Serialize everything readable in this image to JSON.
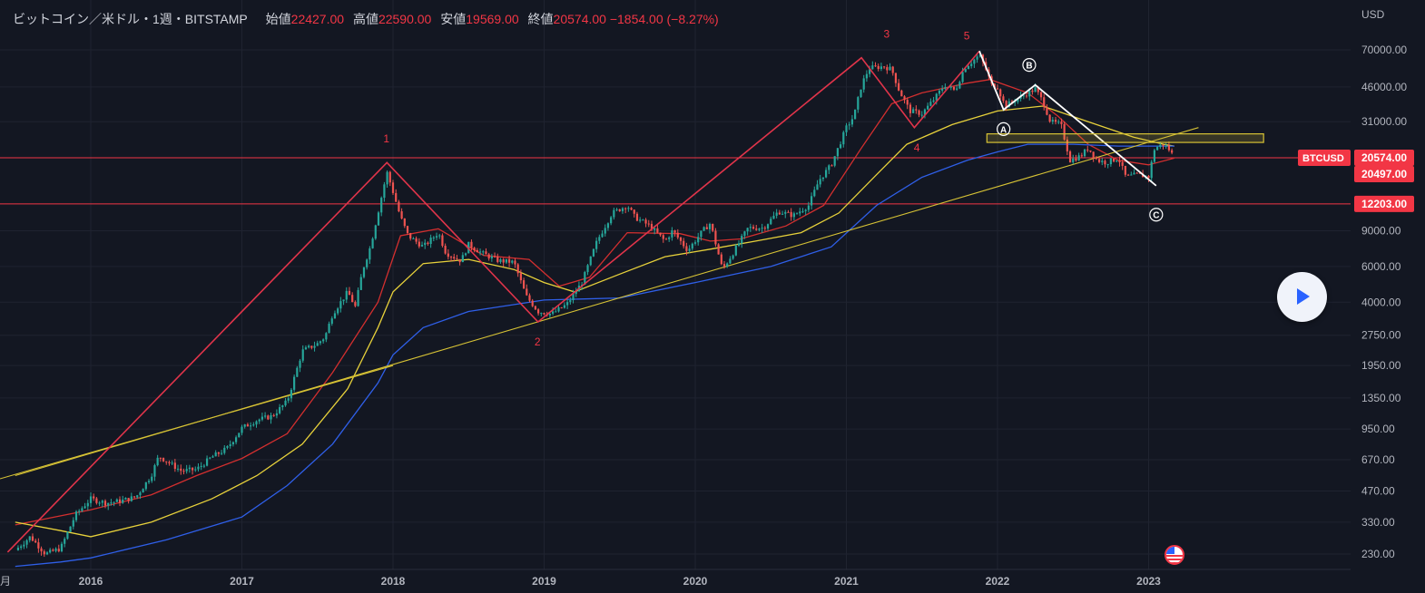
{
  "header": {
    "symbol": "ビットコイン／米ドル・1週・BITSTAMP",
    "open_label": "始値",
    "open": "22427.00",
    "high_label": "高値",
    "high": "22590.00",
    "low_label": "安値",
    "low": "19569.00",
    "close_label": "終値",
    "close": "20574.00",
    "change": "−1854.00 (−8.27%)"
  },
  "chart_data": {
    "type": "line",
    "yaxis": {
      "unit": "USD",
      "scale": "log",
      "ticks": [
        "70000.00",
        "46000.00",
        "31000.00",
        "9000.00",
        "6000.00",
        "4000.00",
        "2750.00",
        "1950.00",
        "1350.00",
        "950.00",
        "670.00",
        "470.00",
        "330.00",
        "230.00"
      ]
    },
    "xaxis": {
      "partial_label": "月",
      "ticks": [
        "2016",
        "2017",
        "2018",
        "2019",
        "2020",
        "2021",
        "2022",
        "2023"
      ]
    },
    "price_labels": [
      {
        "text": "BTCUSD",
        "kind": "symbol"
      },
      {
        "text": "20574.00",
        "kind": "last"
      },
      {
        "text": "20497.00",
        "kind": "ma"
      },
      {
        "text": "12203.00",
        "kind": "line"
      }
    ],
    "horizontal_lines": [
      20574,
      12200
    ],
    "wave_labels": [
      "1",
      "2",
      "3",
      "4",
      "5"
    ],
    "abc_labels": [
      "A",
      "B",
      "C"
    ],
    "series": [
      {
        "values": [
          [
            2015.5,
            240
          ],
          [
            2015.6,
            280
          ],
          [
            2015.7,
            230
          ],
          [
            2015.8,
            245
          ],
          [
            2015.9,
            360
          ],
          [
            2016.0,
            430
          ],
          [
            2016.1,
            410
          ],
          [
            2016.2,
            420
          ],
          [
            2016.3,
            440
          ],
          [
            2016.4,
            560
          ],
          [
            2016.45,
            700
          ],
          [
            2016.5,
            660
          ],
          [
            2016.6,
            590
          ],
          [
            2016.7,
            600
          ],
          [
            2016.8,
            690
          ],
          [
            2016.9,
            760
          ],
          [
            2017.0,
            960
          ],
          [
            2017.1,
            1050
          ],
          [
            2017.2,
            1100
          ],
          [
            2017.3,
            1300
          ],
          [
            2017.4,
            2300
          ],
          [
            2017.5,
            2500
          ],
          [
            2017.55,
            2700
          ],
          [
            2017.6,
            3500
          ],
          [
            2017.7,
            4500
          ],
          [
            2017.75,
            3800
          ],
          [
            2017.8,
            5800
          ],
          [
            2017.85,
            7500
          ],
          [
            2017.9,
            11000
          ],
          [
            2017.96,
            17500
          ],
          [
            2018.0,
            14000
          ],
          [
            2018.05,
            10500
          ],
          [
            2018.1,
            8500
          ],
          [
            2018.2,
            7500
          ],
          [
            2018.3,
            8800
          ],
          [
            2018.35,
            7000
          ],
          [
            2018.45,
            6400
          ],
          [
            2018.5,
            7700
          ],
          [
            2018.6,
            6900
          ],
          [
            2018.7,
            6400
          ],
          [
            2018.8,
            6300
          ],
          [
            2018.88,
            4300
          ],
          [
            2018.96,
            3600
          ],
          [
            2019.05,
            3500
          ],
          [
            2019.15,
            3900
          ],
          [
            2019.25,
            5000
          ],
          [
            2019.35,
            8000
          ],
          [
            2019.45,
            11000
          ],
          [
            2019.55,
            12000
          ],
          [
            2019.6,
            10500
          ],
          [
            2019.7,
            9500
          ],
          [
            2019.8,
            8000
          ],
          [
            2019.85,
            9000
          ],
          [
            2019.95,
            7200
          ],
          [
            2020.05,
            9000
          ],
          [
            2020.1,
            9800
          ],
          [
            2020.18,
            5800
          ],
          [
            2020.25,
            7000
          ],
          [
            2020.35,
            9300
          ],
          [
            2020.45,
            9300
          ],
          [
            2020.55,
            11200
          ],
          [
            2020.65,
            10700
          ],
          [
            2020.75,
            12000
          ],
          [
            2020.82,
            16000
          ],
          [
            2020.9,
            19000
          ],
          [
            2021.0,
            29000
          ],
          [
            2021.05,
            33000
          ],
          [
            2021.1,
            47000
          ],
          [
            2021.15,
            57000
          ],
          [
            2021.25,
            58000
          ],
          [
            2021.3,
            56000
          ],
          [
            2021.35,
            44000
          ],
          [
            2021.42,
            35000
          ],
          [
            2021.5,
            34000
          ],
          [
            2021.58,
            40000
          ],
          [
            2021.65,
            47000
          ],
          [
            2021.72,
            44000
          ],
          [
            2021.78,
            57000
          ],
          [
            2021.85,
            63000
          ],
          [
            2021.88,
            66000
          ],
          [
            2021.92,
            57000
          ],
          [
            2021.96,
            47000
          ],
          [
            2022.0,
            46000
          ],
          [
            2022.05,
            37000
          ],
          [
            2022.1,
            39000
          ],
          [
            2022.18,
            42000
          ],
          [
            2022.25,
            45000
          ],
          [
            2022.3,
            39000
          ],
          [
            2022.35,
            31000
          ],
          [
            2022.42,
            30000
          ],
          [
            2022.48,
            20000
          ],
          [
            2022.55,
            21000
          ],
          [
            2022.6,
            23000
          ],
          [
            2022.66,
            20000
          ],
          [
            2022.72,
            19500
          ],
          [
            2022.8,
            20500
          ],
          [
            2022.85,
            16500
          ],
          [
            2022.92,
            17000
          ],
          [
            2023.0,
            16600
          ],
          [
            2023.04,
            23000
          ],
          [
            2023.1,
            24000
          ],
          [
            2023.14,
            22400
          ],
          [
            2023.17,
            20574
          ]
        ]
      },
      {
        "values": [
          [
            2015.5,
            320
          ],
          [
            2016.0,
            380
          ],
          [
            2016.4,
            450
          ],
          [
            2016.7,
            560
          ],
          [
            2017.0,
            680
          ],
          [
            2017.3,
            900
          ],
          [
            2017.6,
            1800
          ],
          [
            2017.9,
            4000
          ],
          [
            2018.05,
            8500
          ],
          [
            2018.3,
            9200
          ],
          [
            2018.6,
            6800
          ],
          [
            2018.9,
            6500
          ],
          [
            2019.1,
            4800
          ],
          [
            2019.3,
            5300
          ],
          [
            2019.55,
            8800
          ],
          [
            2019.9,
            8700
          ],
          [
            2020.1,
            8000
          ],
          [
            2020.3,
            8200
          ],
          [
            2020.6,
            9500
          ],
          [
            2020.85,
            12000
          ],
          [
            2021.1,
            23000
          ],
          [
            2021.3,
            38000
          ],
          [
            2021.5,
            43000
          ],
          [
            2021.8,
            48000
          ],
          [
            2021.95,
            50000
          ],
          [
            2022.2,
            43000
          ],
          [
            2022.4,
            33000
          ],
          [
            2022.6,
            24000
          ],
          [
            2022.8,
            20000
          ],
          [
            2023.0,
            19000
          ],
          [
            2023.17,
            20500
          ]
        ]
      },
      {
        "values": [
          [
            2015.5,
            330
          ],
          [
            2015.8,
            300
          ],
          [
            2016.0,
            280
          ],
          [
            2016.4,
            330
          ],
          [
            2016.8,
            430
          ],
          [
            2017.1,
            560
          ],
          [
            2017.4,
            800
          ],
          [
            2017.7,
            1500
          ],
          [
            2017.9,
            3000
          ],
          [
            2018.0,
            4500
          ],
          [
            2018.2,
            6200
          ],
          [
            2018.5,
            6500
          ],
          [
            2018.8,
            5800
          ],
          [
            2019.0,
            5000
          ],
          [
            2019.2,
            4500
          ],
          [
            2019.5,
            5500
          ],
          [
            2019.8,
            6700
          ],
          [
            2020.1,
            7300
          ],
          [
            2020.4,
            8000
          ],
          [
            2020.7,
            8800
          ],
          [
            2020.95,
            11000
          ],
          [
            2021.2,
            17000
          ],
          [
            2021.4,
            24000
          ],
          [
            2021.7,
            30000
          ],
          [
            2022.0,
            35000
          ],
          [
            2022.3,
            37000
          ],
          [
            2022.6,
            31000
          ],
          [
            2022.9,
            26000
          ],
          [
            2023.1,
            24000
          ],
          [
            2023.17,
            23500
          ]
        ]
      },
      {
        "values": [
          [
            2015.5,
            200
          ],
          [
            2015.8,
            210
          ],
          [
            2016.0,
            220
          ],
          [
            2016.5,
            270
          ],
          [
            2017.0,
            350
          ],
          [
            2017.3,
            500
          ],
          [
            2017.6,
            800
          ],
          [
            2017.9,
            1600
          ],
          [
            2018.0,
            2200
          ],
          [
            2018.2,
            3000
          ],
          [
            2018.5,
            3600
          ],
          [
            2019.0,
            4100
          ],
          [
            2019.5,
            4200
          ],
          [
            2020.0,
            5000
          ],
          [
            2020.5,
            6000
          ],
          [
            2020.9,
            7500
          ],
          [
            2021.2,
            12000
          ],
          [
            2021.5,
            16500
          ],
          [
            2021.8,
            20000
          ],
          [
            2022.0,
            22000
          ],
          [
            2022.2,
            24000
          ],
          [
            2022.5,
            24000
          ],
          [
            2022.8,
            23500
          ],
          [
            2023.17,
            23500
          ]
        ]
      }
    ]
  },
  "colors": {
    "background": "#131722",
    "up": "#26a69a",
    "down": "#ef5350",
    "wave_line": "#e0344a",
    "trend_line": "#d6c235",
    "ma_red": "#d32f2f",
    "ma_yellow": "#e7d13b",
    "ma_blue": "#2f5fe8",
    "label_red": "#f23645",
    "axis_text": "#b2b5be"
  },
  "icons": {
    "play": "play-icon",
    "flag": "us-flag-icon"
  }
}
